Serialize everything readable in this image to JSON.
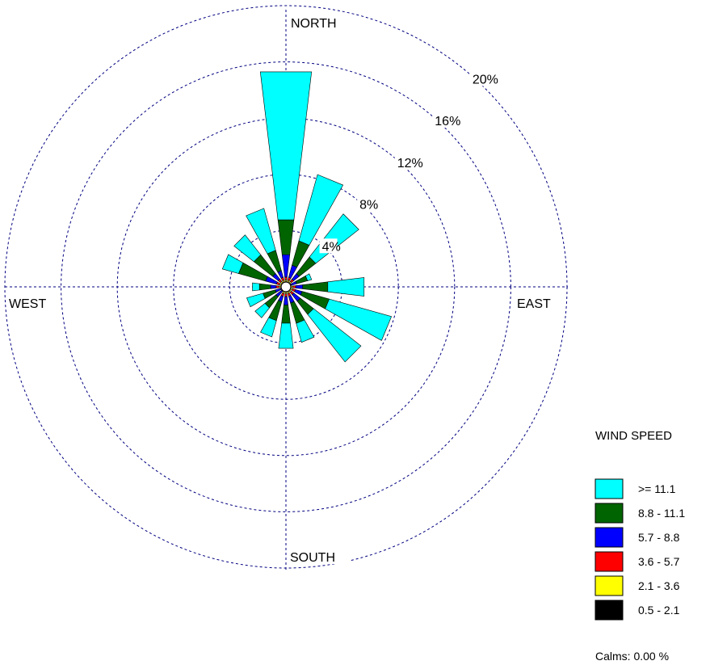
{
  "chart_data": {
    "type": "windrose",
    "title": "",
    "directions": [
      "N",
      "NNE",
      "NE",
      "ENE",
      "E",
      "ESE",
      "SE",
      "SSE",
      "S",
      "SSW",
      "SW",
      "WSW",
      "W",
      "WNW",
      "NW",
      "NNW"
    ],
    "direction_labels": {
      "north": "NORTH",
      "east": "EAST",
      "south": "SOUTH",
      "west": "WEST"
    },
    "unit": "%",
    "rings": [
      4,
      8,
      12,
      16,
      20
    ],
    "ring_labels": [
      "4%",
      "8%",
      "12%",
      "16%",
      "20%"
    ],
    "rmax": 20,
    "series": [
      {
        "name": "0.5 - 2.1",
        "color": "#000000",
        "values": [
          0.3,
          0.3,
          0.3,
          0.2,
          0.3,
          0.3,
          0.3,
          0.3,
          0.3,
          0.3,
          0.2,
          0.2,
          0.3,
          0.3,
          0.3,
          0.3
        ]
      },
      {
        "name": "2.1 - 3.6",
        "color": "#ffff00",
        "values": [
          0.2,
          0.2,
          0.2,
          0.1,
          0.2,
          0.2,
          0.2,
          0.2,
          0.2,
          0.2,
          0.1,
          0.1,
          0.2,
          0.2,
          0.2,
          0.2
        ]
      },
      {
        "name": "3.6 - 5.7",
        "color": "#ff0000",
        "values": [
          0.2,
          0.2,
          0.2,
          0.1,
          0.2,
          0.2,
          0.2,
          0.2,
          0.2,
          0.2,
          0.1,
          0.1,
          0.2,
          0.2,
          0.2,
          0.2
        ]
      },
      {
        "name": "5.7 - 8.8",
        "color": "#0000ff",
        "values": [
          1.6,
          0.9,
          0.5,
          0.4,
          0.5,
          0.5,
          0.6,
          0.5,
          0.6,
          0.4,
          0.5,
          0.4,
          0.4,
          0.8,
          0.5,
          0.5
        ]
      },
      {
        "name": "8.8 - 11.1",
        "color": "#006400",
        "values": [
          2.5,
          1.8,
          1.5,
          0.8,
          1.8,
          2.0,
          1.2,
          1.5,
          1.3,
          1.4,
          1.0,
          0.9,
          0.8,
          2.0,
          1.7,
          1.5
        ]
      },
      {
        "name": ">= 11.1",
        "color": "#00ffff",
        "values": [
          10.6,
          4.9,
          3.9,
          0.3,
          2.6,
          4.6,
          4.3,
          1.4,
          1.8,
          1.2,
          0.9,
          1.2,
          0.5,
          1.2,
          1.8,
          3.1
        ]
      }
    ],
    "legend": {
      "title": "WIND SPEED",
      "position": "bottom-right"
    },
    "calms": "Calms: 0.00 %"
  }
}
